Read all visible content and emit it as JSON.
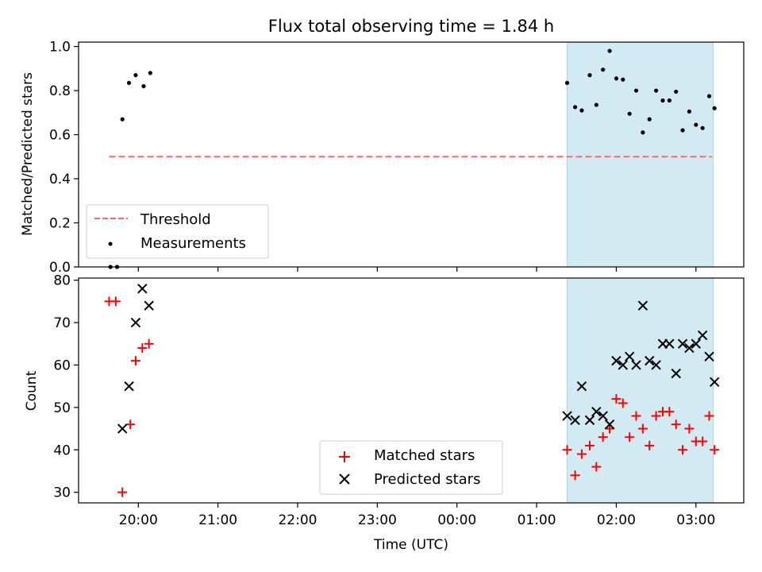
{
  "title": "Flux total observing time = 1.84 h",
  "colors": {
    "threshold": "#ff6666",
    "shade": "#add8e6",
    "matched": "#ff0000",
    "predicted": "#000000"
  },
  "chart_data": [
    {
      "type": "scatter",
      "xlabel": "",
      "ylabel": "Matched/Predicted stars",
      "xlim": [
        "19:15",
        "03:36"
      ],
      "ylim": [
        0,
        1.02
      ],
      "yticks": [
        "0.0",
        "0.2",
        "0.4",
        "0.6",
        "0.8",
        "1.0"
      ],
      "shaded_region": [
        "01:23",
        "03:13"
      ],
      "threshold": {
        "y": 0.5,
        "x_range": [
          "19:38",
          "03:12"
        ]
      },
      "legend": {
        "position": "lower-left",
        "entries": [
          "Threshold",
          "Measurements"
        ]
      },
      "series": [
        {
          "name": "Measurements",
          "points": [
            [
              "19:39",
              0.0
            ],
            [
              "19:44",
              0.0
            ],
            [
              "19:48",
              0.67
            ],
            [
              "19:53",
              0.835
            ],
            [
              "19:58",
              0.87
            ],
            [
              "20:04",
              0.82
            ],
            [
              "20:09",
              0.88
            ],
            [
              "01:23",
              0.835
            ],
            [
              "01:29",
              0.725
            ],
            [
              "01:34",
              0.71
            ],
            [
              "01:40",
              0.87
            ],
            [
              "01:45",
              0.735
            ],
            [
              "01:50",
              0.895
            ],
            [
              "01:55",
              0.98
            ],
            [
              "02:00",
              0.855
            ],
            [
              "02:05",
              0.85
            ],
            [
              "02:10",
              0.695
            ],
            [
              "02:15",
              0.8
            ],
            [
              "02:20",
              0.61
            ],
            [
              "02:25",
              0.67
            ],
            [
              "02:30",
              0.8
            ],
            [
              "02:35",
              0.755
            ],
            [
              "02:40",
              0.755
            ],
            [
              "02:45",
              0.795
            ],
            [
              "02:50",
              0.62
            ],
            [
              "02:55",
              0.705
            ],
            [
              "03:00",
              0.645
            ],
            [
              "03:05",
              0.63
            ],
            [
              "03:10",
              0.775
            ],
            [
              "03:14",
              0.72
            ]
          ]
        }
      ]
    },
    {
      "type": "scatter",
      "xlabel": "Time (UTC)",
      "ylabel": "Count",
      "xlim": [
        "19:15",
        "03:36"
      ],
      "ylim": [
        27.5,
        80.5
      ],
      "yticks": [
        "30",
        "40",
        "50",
        "60",
        "70",
        "80"
      ],
      "xticks": [
        "20:00",
        "21:00",
        "22:00",
        "23:00",
        "00:00",
        "01:00",
        "02:00",
        "03:00"
      ],
      "shaded_region": [
        "01:23",
        "03:13"
      ],
      "legend": {
        "position": "lower-center",
        "entries": [
          "Matched stars",
          "Predicted stars"
        ]
      },
      "series": [
        {
          "name": "Matched stars",
          "marker": "+",
          "points": [
            [
              "19:38",
              75
            ],
            [
              "19:43",
              75
            ],
            [
              "19:48",
              30
            ],
            [
              "19:54",
              46
            ],
            [
              "19:58",
              61
            ],
            [
              "20:03",
              64
            ],
            [
              "20:08",
              65
            ],
            [
              "01:23",
              40
            ],
            [
              "01:29",
              34
            ],
            [
              "01:34",
              39
            ],
            [
              "01:40",
              41
            ],
            [
              "01:45",
              36
            ],
            [
              "01:50",
              43
            ],
            [
              "01:55",
              45
            ],
            [
              "02:00",
              52
            ],
            [
              "02:05",
              51
            ],
            [
              "02:10",
              43
            ],
            [
              "02:15",
              48
            ],
            [
              "02:20",
              45
            ],
            [
              "02:25",
              41
            ],
            [
              "02:30",
              48
            ],
            [
              "02:35",
              49
            ],
            [
              "02:40",
              49
            ],
            [
              "02:45",
              46
            ],
            [
              "02:50",
              40
            ],
            [
              "02:55",
              45
            ],
            [
              "03:00",
              42
            ],
            [
              "03:05",
              42
            ],
            [
              "03:10",
              48
            ],
            [
              "03:14",
              40
            ]
          ]
        },
        {
          "name": "Predicted stars",
          "marker": "x",
          "points": [
            [
              "19:48",
              45
            ],
            [
              "19:53",
              55
            ],
            [
              "19:58",
              70
            ],
            [
              "20:03",
              78
            ],
            [
              "20:08",
              74
            ],
            [
              "01:23",
              48
            ],
            [
              "01:29",
              47
            ],
            [
              "01:34",
              55
            ],
            [
              "01:40",
              47
            ],
            [
              "01:45",
              49
            ],
            [
              "01:50",
              48
            ],
            [
              "01:55",
              46
            ],
            [
              "02:00",
              61
            ],
            [
              "02:05",
              60
            ],
            [
              "02:10",
              62
            ],
            [
              "02:15",
              60
            ],
            [
              "02:20",
              74
            ],
            [
              "02:25",
              61
            ],
            [
              "02:30",
              60
            ],
            [
              "02:35",
              65
            ],
            [
              "02:40",
              65
            ],
            [
              "02:45",
              58
            ],
            [
              "02:50",
              65
            ],
            [
              "02:55",
              64
            ],
            [
              "03:00",
              65
            ],
            [
              "03:05",
              67
            ],
            [
              "03:10",
              62
            ],
            [
              "03:14",
              56
            ]
          ]
        }
      ]
    }
  ]
}
